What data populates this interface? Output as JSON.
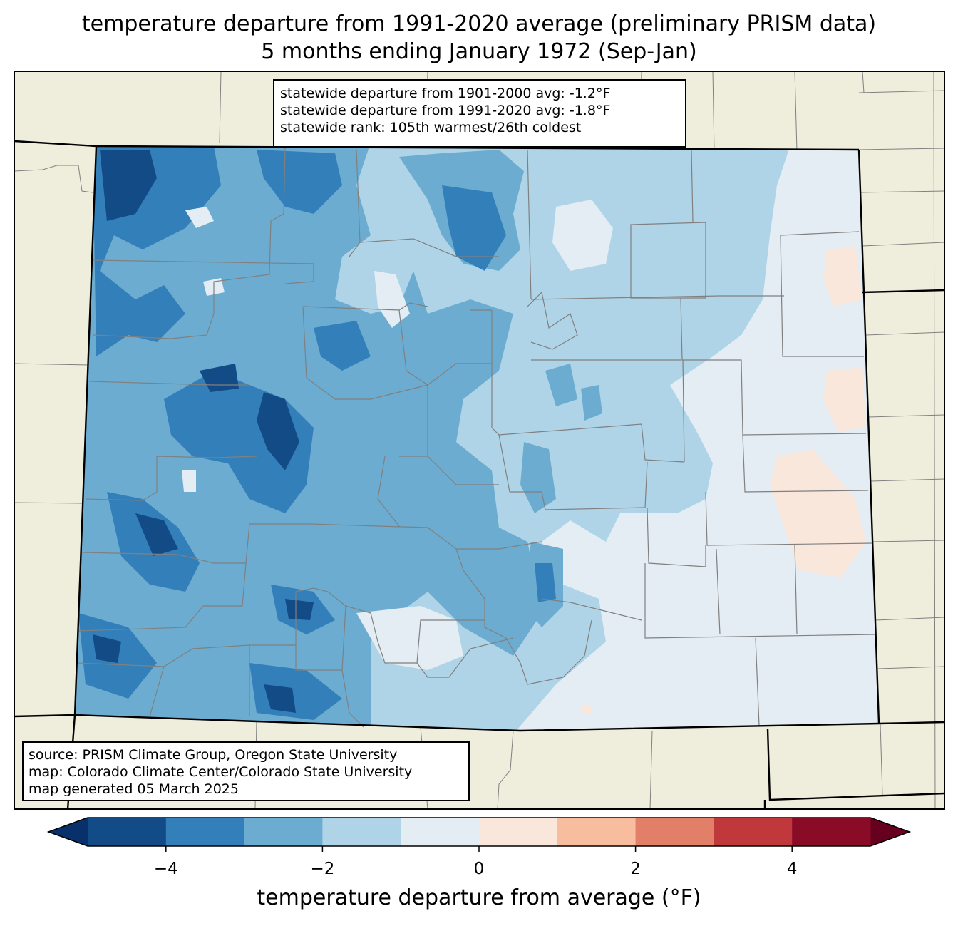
{
  "title": {
    "line1": "temperature departure from 1991-2020 average (preliminary PRISM data)",
    "line2": "5 months ending January 1972 (Sep-Jan)"
  },
  "stats_box": {
    "line1": "statewide departure from 1901-2000 avg: -1.2°F",
    "line2": "statewide departure from 1991-2020 avg: -1.8°F",
    "line3": "statewide rank: 105th warmest/26th coldest"
  },
  "source_box": {
    "line1": "source: PRISM Climate Group, Oregon State University",
    "line2": "map: Colorado Climate Center/Colorado State University",
    "line3": "map generated 05 March 2025"
  },
  "colorbar": {
    "label": "temperature departure from average (°F)",
    "min": -5,
    "max": 5,
    "ticks": [
      {
        "value": -4,
        "label": "−4"
      },
      {
        "value": -2,
        "label": "−2"
      },
      {
        "value": 0,
        "label": "0"
      },
      {
        "value": 2,
        "label": "2"
      },
      {
        "value": 4,
        "label": "4"
      }
    ],
    "colors": [
      "#134b87",
      "#327fba",
      "#6bacd0",
      "#b0d4e7",
      "#e3edf3",
      "#fae7dc",
      "#f8bc9f",
      "#e27f68",
      "#c0383c",
      "#8a0b25"
    ],
    "under_color": "#08306b",
    "over_color": "#67001f"
  },
  "map_colors": {
    "land": "#efeedc",
    "water_background": "#efeedc",
    "state_border": "#000000",
    "county_border": "#808080"
  }
}
